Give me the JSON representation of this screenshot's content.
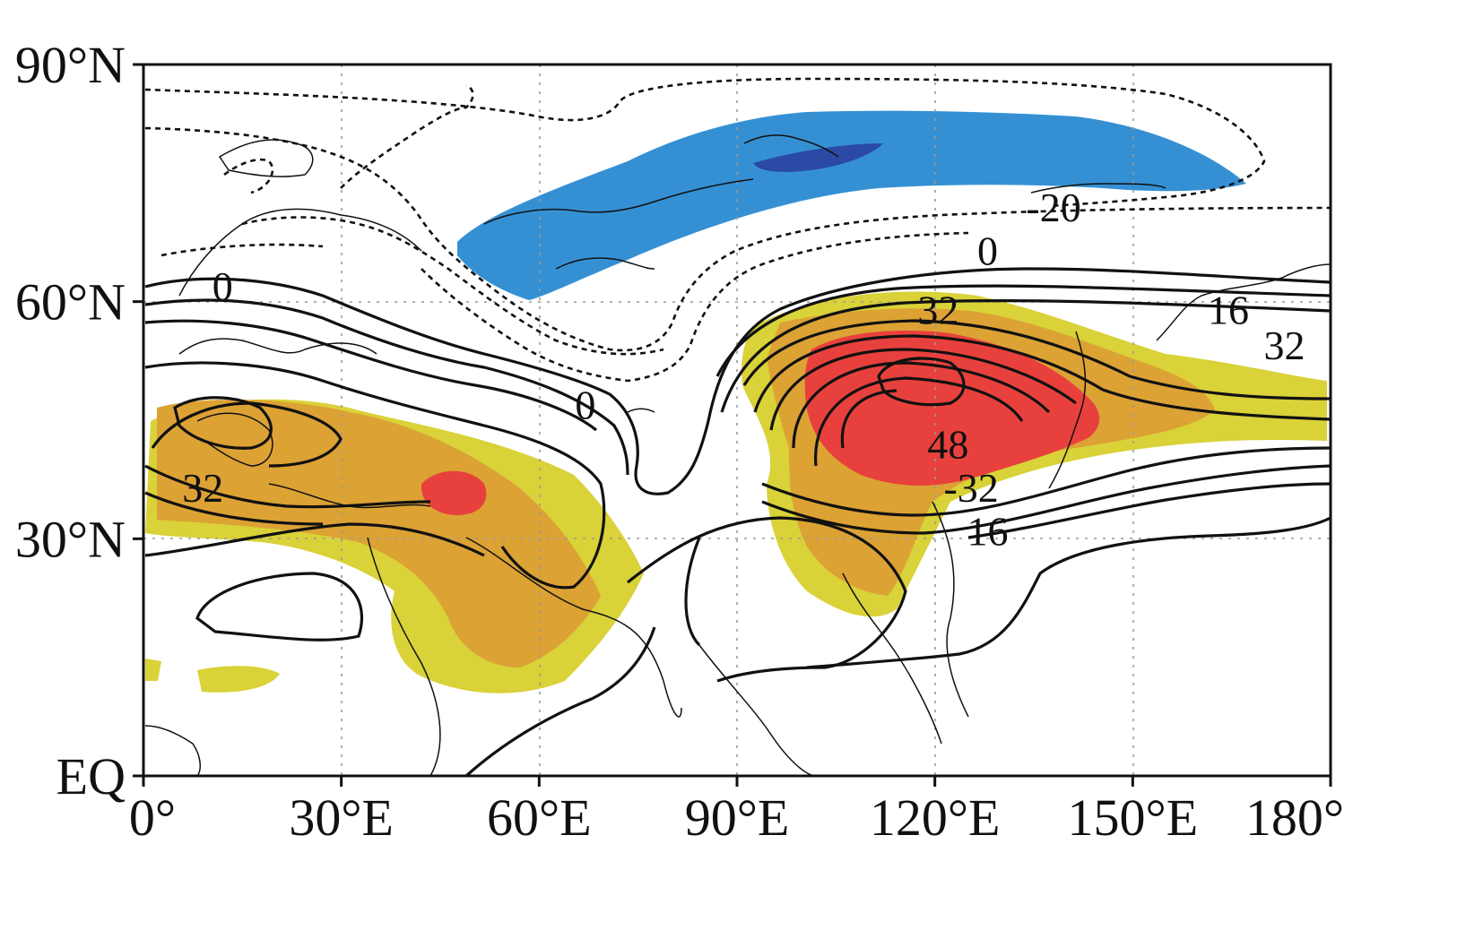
{
  "map": {
    "region": {
      "lon_min": 0,
      "lon_max": 180,
      "lat_min": 0,
      "lat_max": 90
    },
    "x_ticks": [
      {
        "lon": 0,
        "label": "0°"
      },
      {
        "lon": 30,
        "label": "30°E"
      },
      {
        "lon": 60,
        "label": "60°E"
      },
      {
        "lon": 90,
        "label": "90°E"
      },
      {
        "lon": 120,
        "label": "120°E"
      },
      {
        "lon": 150,
        "label": "150°E"
      },
      {
        "lon": 180,
        "label": "180°"
      }
    ],
    "y_ticks": [
      {
        "lat": 90,
        "label": "90°N"
      },
      {
        "lat": 60,
        "label": "60°N"
      },
      {
        "lat": 30,
        "label": "30°N"
      },
      {
        "lat": 0,
        "label": "EQ"
      }
    ],
    "contour_labels": [
      {
        "text": "-20",
        "lon": 138,
        "lat": 72
      },
      {
        "text": "0",
        "lon": 128,
        "lat": 66.5
      },
      {
        "text": "0",
        "lon": 12,
        "lat": 62
      },
      {
        "text": "0",
        "lon": 67,
        "lat": 47
      },
      {
        "text": "32",
        "lon": 120.5,
        "lat": 59
      },
      {
        "text": "16",
        "lon": 164.5,
        "lat": 59
      },
      {
        "text": "32",
        "lon": 173,
        "lat": 54.5
      },
      {
        "text": "32",
        "lon": 9,
        "lat": 36.5
      },
      {
        "text": "48",
        "lon": 122,
        "lat": 42
      },
      {
        "text": "-32",
        "lon": 125.5,
        "lat": 36.5
      },
      {
        "text": "16",
        "lon": 128,
        "lat": 31
      }
    ],
    "shading_colors": {
      "positive_weak": "#d9d238",
      "positive_mid": "#dca234",
      "positive_strong": "#e8413d",
      "negative_weak": "#3590d3",
      "negative_strong": "#2b4aa5"
    },
    "contour_style": {
      "positive": "solid",
      "negative": "dashed"
    },
    "grid": "dotted"
  }
}
